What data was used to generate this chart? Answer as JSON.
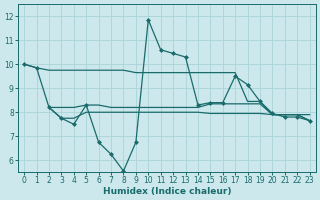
{
  "xlabel": "Humidex (Indice chaleur)",
  "bg_color": "#cce8ec",
  "line_color": "#1a6b6b",
  "grid_color": "#aad4d8",
  "xlim": [
    -0.5,
    23.5
  ],
  "ylim": [
    5.5,
    12.5
  ],
  "yticks": [
    6,
    7,
    8,
    9,
    10,
    11,
    12
  ],
  "xticks": [
    0,
    1,
    2,
    3,
    4,
    5,
    6,
    7,
    8,
    9,
    10,
    11,
    12,
    13,
    14,
    15,
    16,
    17,
    18,
    19,
    20,
    21,
    22,
    23
  ],
  "spiky_x": [
    0,
    1,
    2,
    3,
    4,
    5,
    6,
    7,
    8,
    9,
    10,
    11,
    12,
    13,
    14,
    15,
    16,
    17,
    18,
    19,
    20,
    21,
    22,
    23
  ],
  "spiky_y": [
    10.0,
    9.85,
    8.2,
    7.75,
    7.5,
    8.3,
    6.75,
    6.25,
    5.55,
    6.75,
    11.85,
    10.6,
    10.45,
    10.3,
    8.3,
    8.4,
    8.4,
    9.5,
    9.15,
    8.45,
    7.95,
    7.8,
    7.8,
    7.65
  ],
  "line1_x": [
    0,
    1,
    2,
    3,
    4,
    5,
    6,
    7,
    8,
    9,
    10,
    11,
    12,
    13,
    14,
    15,
    16,
    17,
    18,
    19,
    20,
    21,
    22,
    23
  ],
  "line1_y": [
    10.0,
    9.85,
    9.75,
    9.75,
    9.75,
    9.75,
    9.75,
    9.75,
    9.75,
    9.65,
    9.65,
    9.65,
    9.65,
    9.65,
    9.65,
    9.65,
    9.65,
    9.65,
    8.45,
    8.45,
    7.9,
    7.9,
    7.9,
    7.9
  ],
  "line2_x": [
    2,
    3,
    4,
    5,
    6,
    7,
    8,
    9,
    10,
    11,
    12,
    13,
    14,
    15,
    16,
    17,
    18,
    19,
    20,
    21,
    22,
    23
  ],
  "line2_y": [
    8.2,
    8.2,
    8.2,
    8.3,
    8.3,
    8.2,
    8.2,
    8.2,
    8.2,
    8.2,
    8.2,
    8.2,
    8.2,
    8.35,
    8.35,
    8.35,
    8.35,
    8.35,
    7.9,
    7.9,
    7.9,
    7.65
  ],
  "line3_x": [
    2,
    3,
    4,
    5,
    6,
    7,
    8,
    9,
    10,
    11,
    12,
    13,
    14,
    15,
    16,
    17,
    18,
    19,
    20,
    21,
    22,
    23
  ],
  "line3_y": [
    8.2,
    7.75,
    7.75,
    8.0,
    8.0,
    8.0,
    8.0,
    8.0,
    8.0,
    8.0,
    8.0,
    8.0,
    8.0,
    7.95,
    7.95,
    7.95,
    7.95,
    7.95,
    7.9,
    7.9,
    7.9,
    7.65
  ]
}
